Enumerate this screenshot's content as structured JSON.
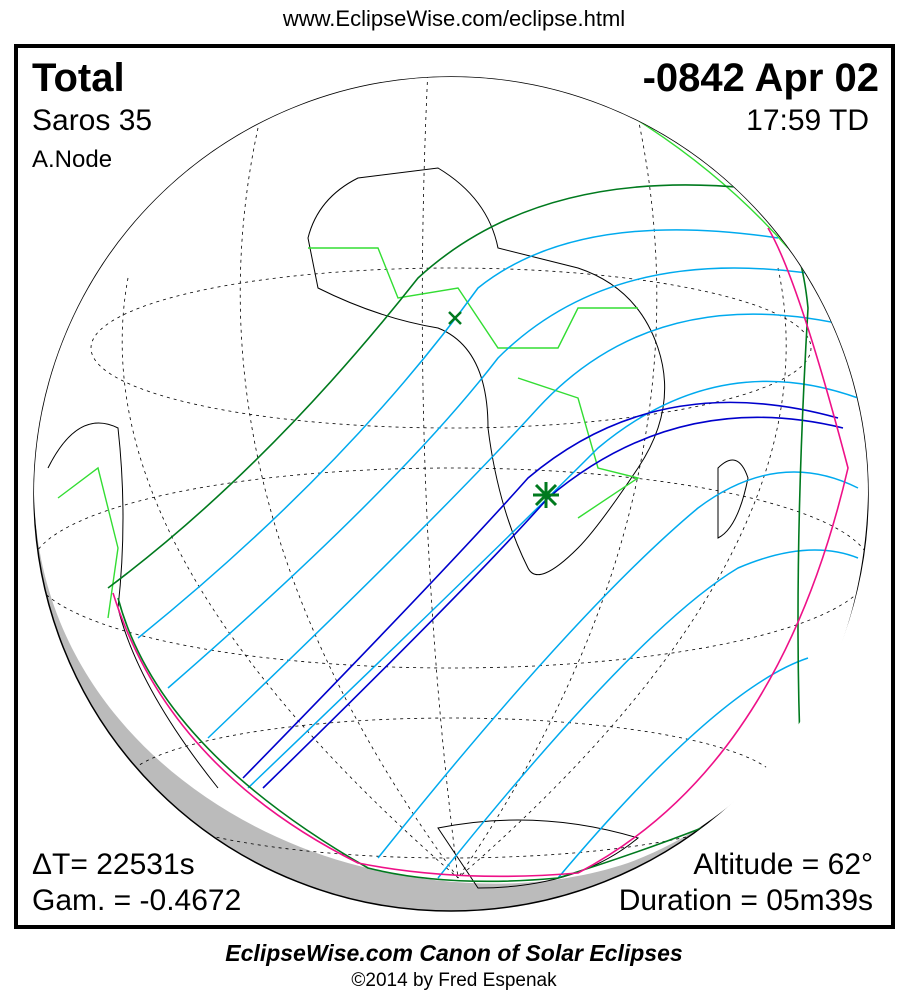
{
  "header": {
    "url": "www.EclipseWise.com/eclipse.html"
  },
  "eclipse": {
    "type": "Total",
    "saros": "Saros  35",
    "node": "A.Node",
    "date": "-0842 Apr 02",
    "time": "17:59 TD",
    "delta_t": "ΔT=  22531s",
    "gamma": "Gam. = -0.4672",
    "altitude": "Altitude = 62°",
    "duration": "Duration = 05m39s"
  },
  "footer": {
    "title": "EclipseWise.com Canon of Solar Eclipses",
    "copyright": "©2014 by Fred Espenak"
  },
  "colors": {
    "central_path": "#0000cc",
    "penumbral_limits": "#007a1e",
    "partial_lines": "#00aaee",
    "rise_set_curve": "#ee1188",
    "borders": "#33dd33",
    "night_side": "#bbbbbb"
  },
  "markers": {
    "greatest_eclipse": "star-marker",
    "sub_solar": "x-marker"
  }
}
